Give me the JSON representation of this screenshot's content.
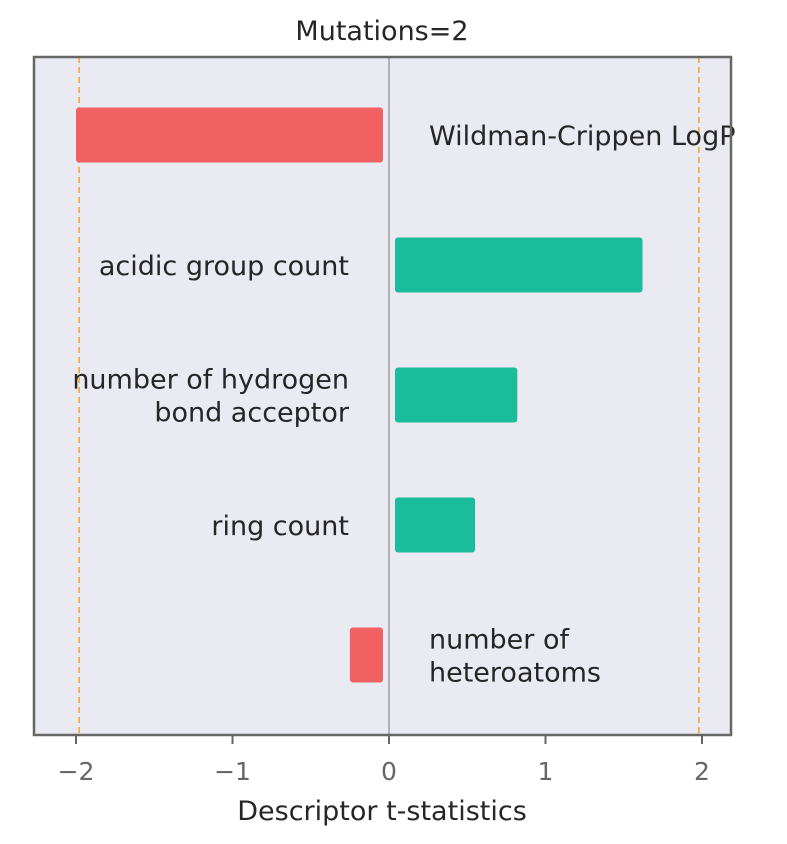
{
  "chart_data": {
    "type": "bar",
    "orientation": "horizontal",
    "title": "Mutations=2",
    "xlabel": "Descriptor t-statistics",
    "ylabel": "",
    "xlim": [
      -2.25,
      2.2
    ],
    "xticks": [
      -2,
      -1,
      0,
      1,
      2
    ],
    "xtick_labels": [
      "−2",
      "−1",
      "0",
      "1",
      "2"
    ],
    "threshold_lines": [
      -1.98,
      1.98
    ],
    "categories": [
      "Wildman-Crippen LogP",
      "acidic group count",
      "number of hydrogen bond acceptor",
      "ring count",
      "number of heteroatoms"
    ],
    "values": [
      -2.0,
      1.62,
      0.82,
      0.55,
      -0.25
    ],
    "label_lines": [
      [
        "Wildman-Crippen LogP"
      ],
      [
        "acidic group count"
      ],
      [
        "number of hydrogen",
        "bond acceptor"
      ],
      [
        "ring count"
      ],
      [
        "number of",
        "heteroatoms"
      ]
    ],
    "colors": {
      "negative": "#f26161",
      "positive": "#1abc9c",
      "threshold": "#f5a53a",
      "zero_line": "#8c8c8c",
      "plot_background": "#eaeaf2",
      "frame": "#666666"
    },
    "grid": false
  }
}
